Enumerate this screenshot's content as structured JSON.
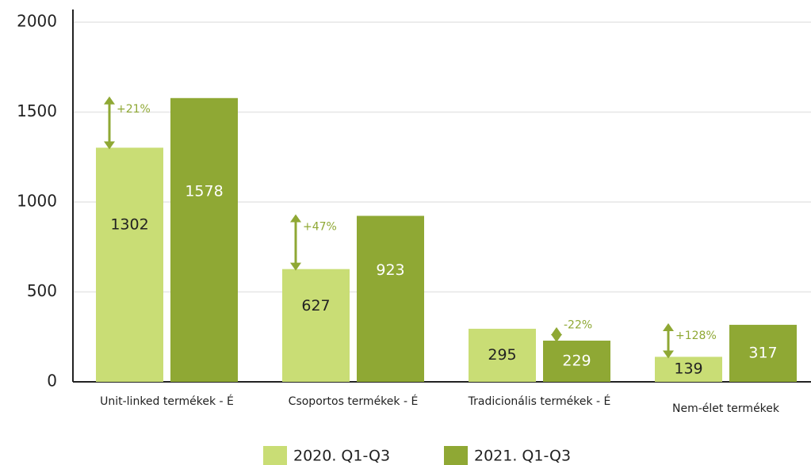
{
  "chart_data": {
    "type": "bar",
    "categories": [
      "Unit-linked termékek - É",
      "Csoportos termékek - É",
      "Tradicionális termékek - É",
      "Nem-élet termékek"
    ],
    "series": [
      {
        "name": "2020. Q1-Q3",
        "color": "#c9dd75",
        "values": [
          1302,
          627,
          295,
          139
        ]
      },
      {
        "name": "2021. Q1-Q3",
        "color": "#8fa834",
        "values": [
          1578,
          923,
          229,
          317
        ]
      }
    ],
    "annotations": [
      "+21%",
      "+47%",
      "-22%",
      "+128%"
    ],
    "ylim": [
      0,
      2000
    ],
    "yticks": [
      0,
      500,
      1000,
      1500,
      2000
    ],
    "grid": true
  }
}
